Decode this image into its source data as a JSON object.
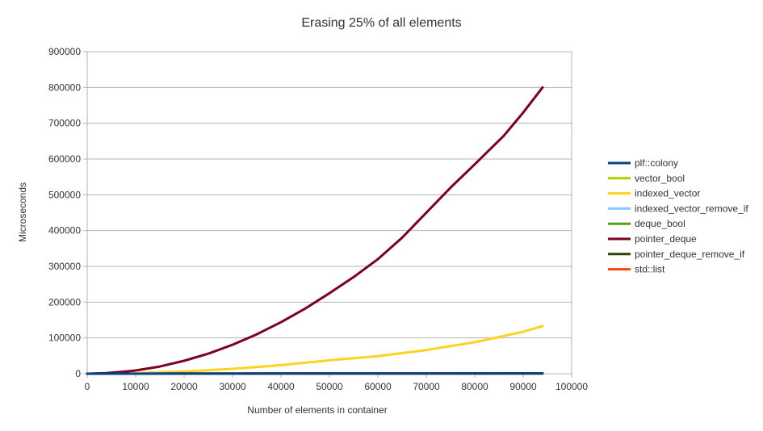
{
  "chart_data": {
    "type": "line",
    "title": "Erasing 25% of all elements",
    "xlabel": "Number of elements in container",
    "ylabel": "Microseconds",
    "xlim": [
      0,
      100000
    ],
    "ylim": [
      0,
      900000
    ],
    "xticks": [
      0,
      10000,
      20000,
      30000,
      40000,
      50000,
      60000,
      70000,
      80000,
      90000,
      100000
    ],
    "yticks": [
      0,
      100000,
      200000,
      300000,
      400000,
      500000,
      600000,
      700000,
      800000,
      900000
    ],
    "grid": true,
    "legend_position": "right",
    "series": [
      {
        "name": "plf::colony",
        "color": "#004586",
        "x": [
          0,
          10000,
          20000,
          30000,
          40000,
          50000,
          60000,
          70000,
          80000,
          94000
        ],
        "y": [
          0,
          100,
          200,
          300,
          400,
          500,
          600,
          700,
          800,
          900
        ]
      },
      {
        "name": "vector_bool",
        "color": "#aecf00",
        "x": [
          0,
          10000,
          20000,
          30000,
          40000,
          50000,
          60000,
          70000,
          80000,
          94000
        ],
        "y": [
          0,
          50,
          100,
          150,
          200,
          250,
          300,
          350,
          400,
          450
        ]
      },
      {
        "name": "indexed_vector",
        "color": "#ffd320",
        "x": [
          0,
          10000,
          20000,
          30000,
          40000,
          50000,
          60000,
          70000,
          80000,
          90000,
          94000
        ],
        "y": [
          0,
          1500,
          6000,
          13500,
          24000,
          37500,
          49000,
          66000,
          88000,
          117000,
          133000
        ]
      },
      {
        "name": "indexed_vector_remove_if",
        "color": "#83caff",
        "x": [
          0,
          10000,
          20000,
          30000,
          40000,
          50000,
          60000,
          70000,
          80000,
          94000
        ],
        "y": [
          0,
          80,
          160,
          240,
          320,
          400,
          480,
          560,
          640,
          750
        ]
      },
      {
        "name": "deque_bool",
        "color": "#579d1c",
        "x": [
          0,
          10000,
          20000,
          30000,
          40000,
          50000,
          60000,
          70000,
          80000,
          94000
        ],
        "y": [
          0,
          60,
          120,
          180,
          240,
          300,
          360,
          420,
          480,
          560
        ]
      },
      {
        "name": "pointer_deque",
        "color": "#7e0021",
        "x": [
          0,
          4000,
          8000,
          10000,
          15000,
          20000,
          25000,
          30000,
          35000,
          40000,
          45000,
          50000,
          55000,
          60000,
          65000,
          70000,
          75000,
          80000,
          86000,
          90000,
          94000
        ],
        "y": [
          0,
          1500,
          6000,
          9000,
          20000,
          36000,
          56000,
          81000,
          110000,
          144000,
          182000,
          225000,
          270000,
          320000,
          380000,
          450000,
          520000,
          585000,
          665000,
          730000,
          800000
        ]
      },
      {
        "name": "pointer_deque_remove_if",
        "color": "#314004",
        "x": [
          0,
          10000,
          20000,
          30000,
          40000,
          50000,
          60000,
          70000,
          80000,
          94000
        ],
        "y": [
          0,
          90,
          180,
          270,
          360,
          450,
          540,
          630,
          720,
          850
        ]
      },
      {
        "name": "std::list",
        "color": "#ff420e",
        "x": [
          0,
          10000,
          20000,
          30000,
          40000,
          50000,
          60000,
          70000,
          80000,
          94000
        ],
        "y": [
          0,
          70,
          140,
          210,
          280,
          350,
          420,
          490,
          560,
          660
        ]
      }
    ]
  }
}
